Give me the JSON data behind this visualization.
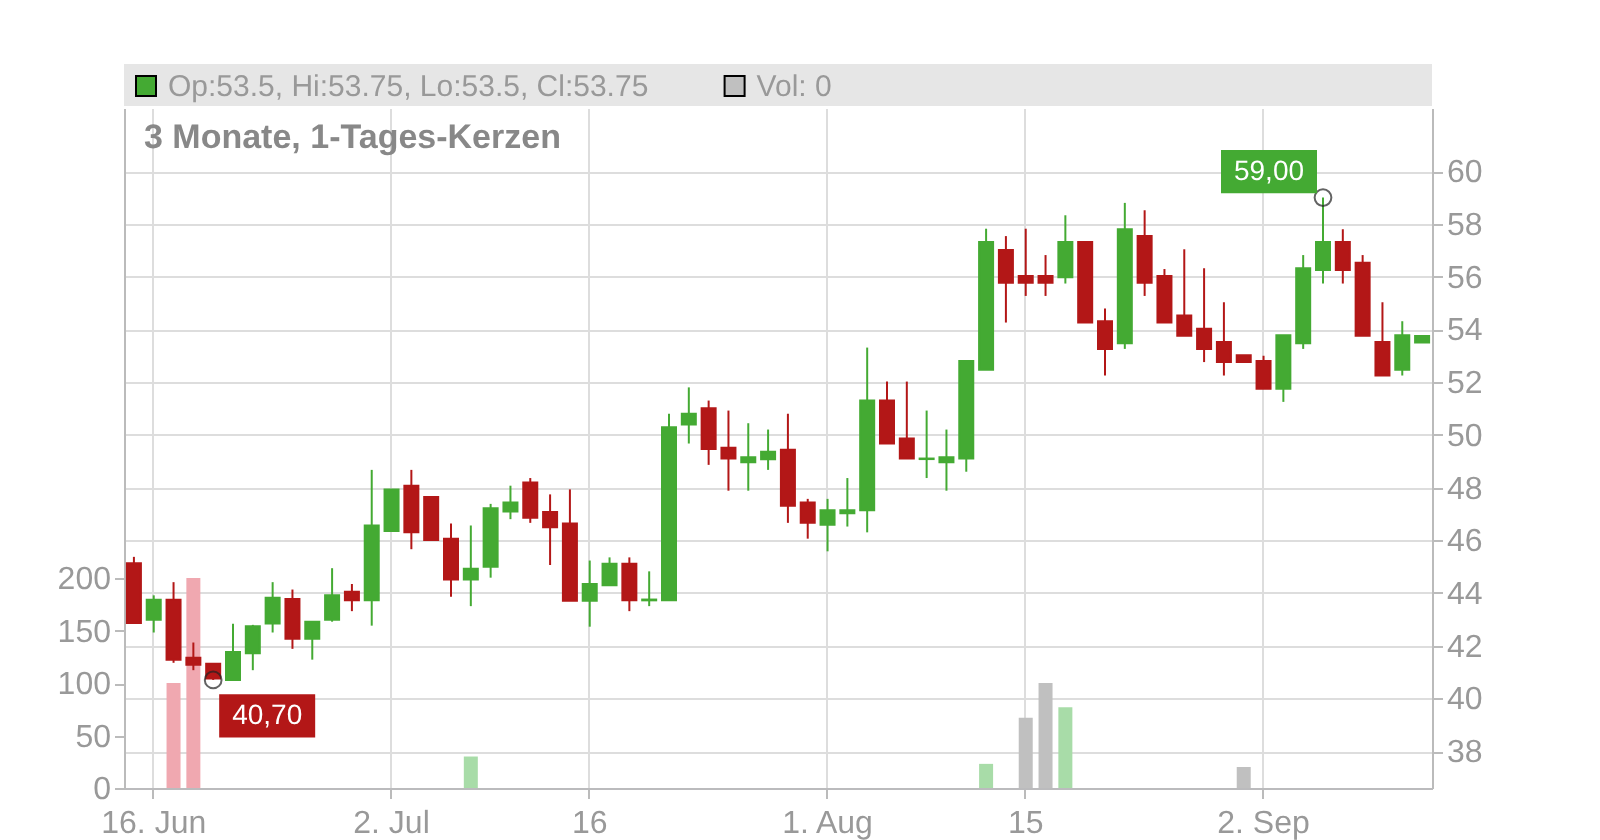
{
  "chart_data": {
    "type": "candlestick",
    "title": "3 Monate, 1-Tages-Kerzen",
    "categories": [
      null,
      "16. Jun",
      null,
      null,
      null,
      null,
      null,
      null,
      null,
      null,
      null,
      null,
      null,
      "2. Jul",
      null,
      null,
      null,
      null,
      null,
      null,
      null,
      null,
      null,
      "16",
      null,
      null,
      null,
      null,
      null,
      null,
      null,
      null,
      null,
      null,
      null,
      "1. Aug",
      null,
      null,
      null,
      null,
      null,
      null,
      null,
      null,
      null,
      "15",
      null,
      null,
      null,
      null,
      null,
      null,
      null,
      null,
      null,
      null,
      null,
      "2. Sep",
      null,
      null,
      null,
      null,
      null,
      null,
      null,
      null
    ],
    "series": [
      {
        "name": "Op:53.5, Hi:53.75, Lo:53.5, Cl:53.75",
        "type": "candlestick",
        "axis": "y2",
        "color": "#44aa33",
        "ohlc": [
          [
            45.13,
            45.37,
            42.86,
            42.86
          ],
          [
            42.98,
            43.91,
            42.5,
            43.74
          ],
          [
            43.74,
            44.41,
            41.35,
            41.47
          ],
          [
            41.54,
            42.12,
            41.07,
            41.28
          ],
          [
            41.31,
            41.31,
            40.7,
            40.75
          ],
          [
            40.7,
            42.83,
            40.7,
            41.76
          ],
          [
            41.71,
            42.79,
            41.07,
            42.74
          ],
          [
            42.84,
            44.41,
            42.5,
            43.82
          ],
          [
            43.77,
            44.13,
            41.88,
            42.26
          ],
          [
            42.26,
            42.91,
            41.47,
            42.91
          ],
          [
            42.98,
            44.94,
            42.91,
            43.91
          ],
          [
            44.05,
            44.34,
            43.31,
            43.72
          ],
          [
            43.72,
            48.67,
            42.76,
            46.56
          ],
          [
            46.35,
            47.93,
            46.35,
            47.93
          ],
          [
            48.07,
            48.67,
            45.66,
            46.3
          ],
          [
            47.64,
            47.64,
            46.01,
            46.01
          ],
          [
            46.06,
            46.64,
            43.86,
            44.51
          ],
          [
            44.51,
            46.56,
            43.5,
            44.92
          ],
          [
            44.99,
            47.38,
            44.58,
            47.21
          ],
          [
            47.09,
            48.07,
            46.8,
            47.43
          ],
          [
            48.19,
            48.36,
            46.66,
            46.85
          ],
          [
            47.07,
            47.74,
            45.06,
            46.49
          ],
          [
            46.64,
            47.93,
            43.7,
            43.7
          ],
          [
            43.7,
            45.23,
            42.72,
            44.34
          ],
          [
            44.29,
            45.35,
            44.29,
            45.11
          ],
          [
            45.11,
            45.35,
            43.31,
            43.72
          ],
          [
            43.72,
            44.82,
            43.5,
            43.75
          ],
          [
            43.72,
            50.8,
            43.72,
            50.29
          ],
          [
            50.39,
            51.8,
            49.67,
            50.8
          ],
          [
            51.01,
            51.3,
            48.86,
            49.46
          ],
          [
            49.51,
            50.92,
            47.88,
            49.1
          ],
          [
            48.96,
            50.44,
            47.88,
            49.15
          ],
          [
            49.07,
            50.2,
            48.67,
            49.36
          ],
          [
            49.43,
            50.8,
            46.66,
            47.31
          ],
          [
            47.43,
            47.57,
            46.06,
            46.66
          ],
          [
            46.59,
            47.57,
            45.58,
            47.14
          ],
          [
            47.02,
            48.36,
            46.52,
            47.14
          ],
          [
            47.14,
            53.31,
            46.3,
            51.3
          ],
          [
            51.3,
            52.02,
            49.67,
            49.67
          ],
          [
            49.86,
            52.02,
            49.1,
            49.1
          ],
          [
            49.08,
            50.92,
            48.36,
            49.1
          ],
          [
            48.96,
            50.2,
            47.88,
            49.15
          ],
          [
            49.1,
            52.8,
            48.6,
            52.8
          ],
          [
            52.47,
            57.82,
            52.47,
            57.32
          ],
          [
            57.01,
            57.54,
            54.26,
            55.77
          ],
          [
            56.03,
            57.82,
            55.27,
            55.77
          ],
          [
            56.03,
            56.82,
            55.27,
            55.77
          ],
          [
            55.98,
            58.33,
            55.74,
            57.32
          ],
          [
            57.32,
            57.32,
            54.26,
            54.26
          ],
          [
            54.31,
            54.79,
            52.25,
            53.26
          ],
          [
            53.47,
            58.8,
            53.26,
            57.8
          ],
          [
            57.54,
            58.52,
            55.27,
            55.77
          ],
          [
            56.03,
            56.29,
            54.26,
            54.26
          ],
          [
            54.53,
            57.04,
            53.76,
            53.76
          ],
          [
            54.02,
            56.32,
            52.76,
            53.26
          ],
          [
            53.52,
            55.03,
            52.25,
            52.76
          ],
          [
            53.02,
            53.02,
            52.76,
            52.76
          ],
          [
            52.8,
            53.0,
            51.75,
            51.75
          ],
          [
            51.75,
            53.78,
            51.25,
            53.78
          ],
          [
            53.47,
            56.82,
            53.26,
            56.32
          ],
          [
            56.25,
            59.0,
            55.74,
            57.32
          ],
          [
            57.32,
            57.8,
            55.74,
            56.25
          ],
          [
            56.53,
            56.82,
            53.76,
            53.76
          ],
          [
            53.52,
            55.03,
            52.25,
            52.25
          ],
          [
            52.47,
            54.31,
            52.25,
            53.78
          ],
          [
            53.5,
            53.75,
            53.5,
            53.75
          ]
        ],
        "colors": [
          "#b31717",
          "#44aa33",
          "#b31717",
          "#b31717",
          "#b31717",
          "#44aa33",
          "#44aa33",
          "#44aa33",
          "#b31717",
          "#44aa33",
          "#44aa33",
          "#b31717",
          "#44aa33",
          "#44aa33",
          "#b31717",
          "#b31717",
          "#b31717",
          "#44aa33",
          "#44aa33",
          "#44aa33",
          "#b31717",
          "#b31717",
          "#b31717",
          "#44aa33",
          "#44aa33",
          "#b31717",
          "#44aa33",
          "#44aa33",
          "#44aa33",
          "#b31717",
          "#b31717",
          "#44aa33",
          "#44aa33",
          "#b31717",
          "#b31717",
          "#44aa33",
          "#44aa33",
          "#44aa33",
          "#b31717",
          "#b31717",
          "#44aa33",
          "#44aa33",
          "#44aa33",
          "#44aa33",
          "#b31717",
          "#b31717",
          "#b31717",
          "#44aa33",
          "#b31717",
          "#b31717",
          "#44aa33",
          "#b31717",
          "#b31717",
          "#b31717",
          "#b31717",
          "#b31717",
          "#b31717",
          "#b31717",
          "#44aa33",
          "#44aa33",
          "#44aa33",
          "#b31717",
          "#b31717",
          "#b31717",
          "#44aa33",
          "#44aa33"
        ]
      },
      {
        "name": "Vol: 0",
        "type": "bar",
        "axis": "y",
        "color": "#c0c0c0",
        "values": [
          null,
          null,
          100,
          200,
          null,
          null,
          null,
          null,
          null,
          null,
          null,
          null,
          null,
          null,
          null,
          null,
          null,
          30,
          null,
          null,
          null,
          null,
          null,
          null,
          null,
          null,
          null,
          null,
          null,
          null,
          null,
          null,
          null,
          null,
          null,
          null,
          null,
          null,
          null,
          null,
          null,
          null,
          null,
          23,
          null,
          67,
          100,
          77,
          null,
          null,
          null,
          null,
          null,
          null,
          null,
          null,
          20,
          null,
          null,
          null,
          null,
          null,
          null,
          null,
          null,
          null
        ],
        "colors": [
          null,
          null,
          "#f0a8b0",
          "#f0a8b0",
          null,
          null,
          null,
          null,
          null,
          null,
          null,
          null,
          null,
          null,
          null,
          null,
          null,
          "#a8dca8",
          null,
          null,
          null,
          null,
          null,
          null,
          null,
          null,
          null,
          null,
          null,
          null,
          null,
          null,
          null,
          null,
          null,
          null,
          null,
          null,
          null,
          null,
          null,
          null,
          null,
          "#a8dca8",
          null,
          "#c0c0c0",
          "#c0c0c0",
          "#a8dca8",
          null,
          null,
          null,
          null,
          null,
          null,
          null,
          null,
          "#c0c0c0",
          null,
          null,
          null,
          null,
          null,
          null,
          null,
          null,
          null
        ]
      },
      {
        "type": "scatter",
        "axis": "y2",
        "color": "#222222",
        "marker": "circle",
        "values": [
          null,
          null,
          null,
          null,
          40.7,
          null,
          null,
          null,
          null,
          null,
          null,
          null,
          null,
          null,
          null,
          null,
          null,
          null,
          null,
          null,
          null,
          null,
          null,
          null,
          null,
          null,
          null,
          null,
          null,
          null,
          null,
          null,
          null,
          null,
          null,
          null,
          null,
          null,
          null,
          null,
          null,
          null,
          null,
          null,
          null,
          null,
          null,
          null,
          null,
          null,
          null,
          null,
          null,
          null,
          null,
          null,
          null,
          null,
          null,
          null,
          59.0,
          null,
          null,
          null,
          null,
          null
        ]
      }
    ],
    "ylim": [
      0,
      648
    ],
    "yticks": [
      0,
      50,
      100,
      150,
      200
    ],
    "y2lim": [
      36.6,
      62.4
    ],
    "y2ticks": [
      38,
      40,
      42,
      44,
      46,
      48,
      50,
      52,
      54,
      56,
      58,
      60
    ],
    "grid": true,
    "legend": "top",
    "annotations": [
      "40,70",
      "59,00"
    ]
  }
}
